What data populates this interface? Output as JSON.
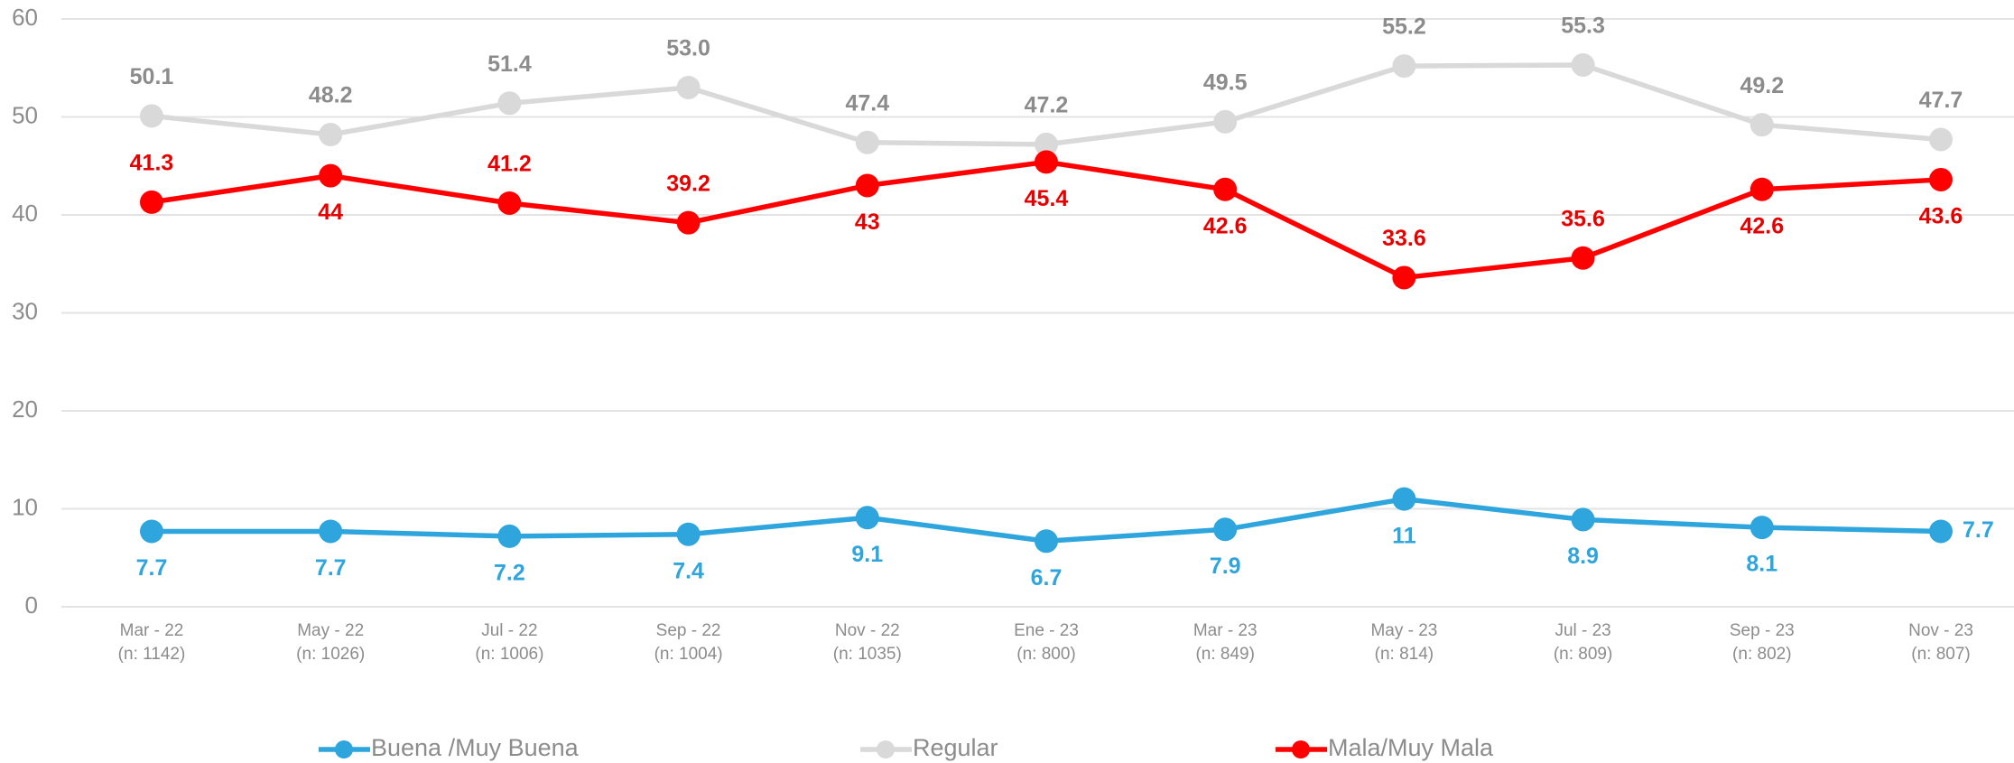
{
  "chart_data": {
    "type": "line",
    "categories": [
      [
        "Mar - 22",
        "(n: 1142)"
      ],
      [
        "May - 22",
        "(n: 1026)"
      ],
      [
        "Jul - 22",
        "(n: 1006)"
      ],
      [
        "Sep - 22",
        "(n: 1004)"
      ],
      [
        "Nov - 22",
        "(n: 1035)"
      ],
      [
        "Ene - 23",
        "(n: 800)"
      ],
      [
        "Mar - 23",
        "(n: 849)"
      ],
      [
        "May - 23",
        "(n: 814)"
      ],
      [
        "Jul - 23",
        "(n: 809)"
      ],
      [
        "Sep - 23",
        "(n: 802)"
      ],
      [
        "Nov - 23",
        "(n: 807)"
      ]
    ],
    "series": [
      {
        "name": "Buena /Muy Buena",
        "color": "#2ea5dc",
        "label_color": "#2ea5dc",
        "values": [
          7.7,
          7.7,
          7.2,
          7.4,
          9.1,
          6.7,
          7.9,
          11,
          8.9,
          8.1,
          7.7
        ]
      },
      {
        "name": "Regular",
        "color": "#d9d9d9",
        "label_color": "#8c8c8c",
        "values": [
          50.1,
          48.2,
          51.4,
          53.0,
          47.4,
          47.2,
          49.5,
          55.2,
          55.3,
          49.2,
          47.7
        ],
        "value_labels": [
          "50.1",
          "48.2",
          "51.4",
          "53.0",
          "47.4",
          "47.2",
          "49.5",
          "55.2",
          "55.3",
          "49.2",
          "47.7"
        ]
      },
      {
        "name": "Mala/Muy Mala",
        "color": "#ff0000",
        "label_color": "#e60000",
        "values": [
          41.3,
          44,
          41.2,
          39.2,
          43,
          45.4,
          42.6,
          33.6,
          35.6,
          42.6,
          43.6
        ]
      }
    ],
    "ylim": [
      0,
      60
    ],
    "yticks": [
      0,
      10,
      20,
      30,
      40,
      50,
      60
    ],
    "grid": true,
    "legend": "bottom"
  }
}
